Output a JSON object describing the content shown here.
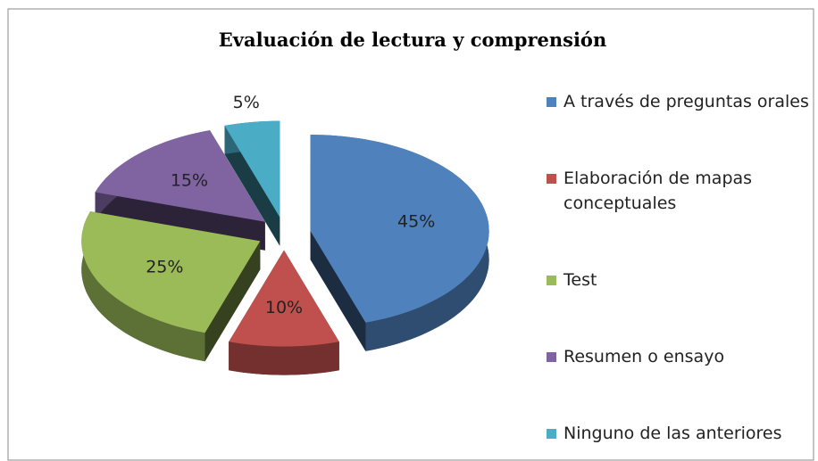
{
  "chart_data": {
    "type": "pie",
    "title": "Evaluación de lectura y comprensión",
    "categories": [
      "A través de preguntas orales",
      "Elaboración de mapas conceptuales",
      "Test",
      "Resumen o ensayo",
      "Ninguno de las anteriores"
    ],
    "values": [
      45,
      10,
      25,
      15,
      5
    ],
    "value_labels": [
      "45%",
      "10%",
      "25%",
      "15%",
      "5%"
    ],
    "colors": [
      "#4f81bd",
      "#c0504d",
      "#9bbb59",
      "#8064a2",
      "#4bacc6"
    ],
    "legend": "right"
  }
}
